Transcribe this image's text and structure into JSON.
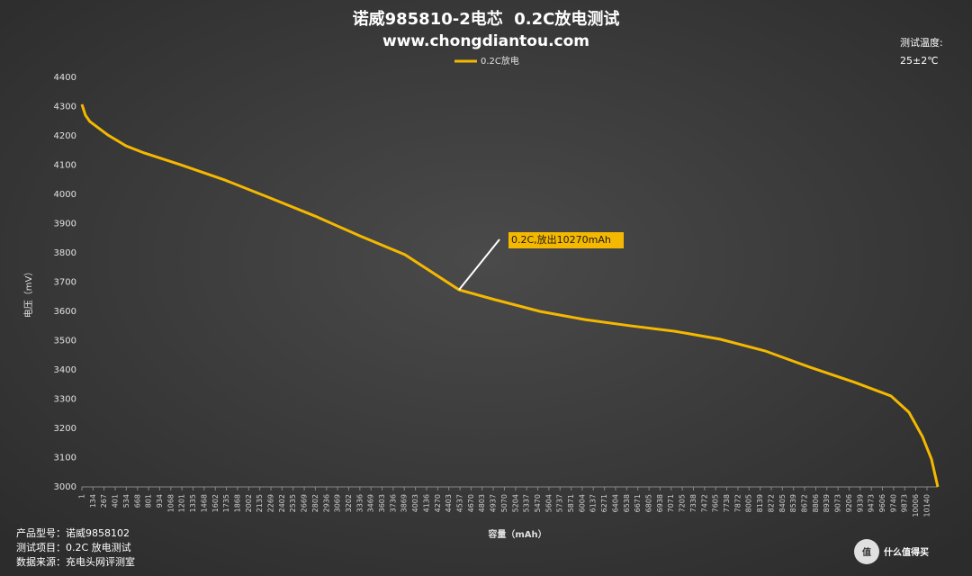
{
  "chart_data": {
    "type": "line",
    "title": "诺威985810-2电芯  0.2C放电测试",
    "subtitle": "www.chongdiantou.com",
    "temperature_label": "测试温度:",
    "temperature": "25±2℃",
    "y_label": "电压（mV）",
    "x_label": "容量（mAh）",
    "annotation": "0.2C,放出10270mAh",
    "notes": [
      "产品型号：诺威9858102",
      "测试项目：0.2C 放电测试",
      "数据来源：充电头网评测室"
    ],
    "watermark": "什么值得买",
    "watermark_icon": "值",
    "grid": false,
    "legend": "top",
    "x": [
      1,
      43,
      97,
      313,
      529,
      745,
      1177,
      1717,
      2257,
      2797,
      3337,
      3877,
      4525,
      4957,
      5497,
      6037,
      6577,
      7117,
      7657,
      8197,
      8737,
      9276,
      9708,
      9924,
      10086,
      10194,
      10270
    ],
    "series": [
      {
        "name": "0.2C放电",
        "color": "#f5b800",
        "values": [
          4308,
          4271,
          4249,
          4203,
          4166,
          4142,
          4102,
          4049,
          3988,
          3926,
          3858,
          3794,
          3674,
          3640,
          3600,
          3572,
          3551,
          3532,
          3505,
          3465,
          3409,
          3357,
          3311,
          3255,
          3172,
          3095,
          3000
        ]
      }
    ],
    "xlim": [
      1,
      10270
    ],
    "ylim": [
      3000,
      4400
    ],
    "xticks": [
      1,
      134,
      267,
      401,
      534,
      668,
      801,
      934,
      1068,
      1201,
      1335,
      1468,
      1602,
      1735,
      1868,
      2002,
      2135,
      2269,
      2402,
      2535,
      2669,
      2802,
      2936,
      3069,
      3202,
      3336,
      3469,
      3603,
      3736,
      3869,
      4003,
      4136,
      4270,
      4403,
      4537,
      4670,
      4803,
      4937,
      5070,
      5204,
      5337,
      5470,
      5604,
      5737,
      5871,
      6004,
      6137,
      6271,
      6404,
      6538,
      6671,
      6805,
      6938,
      7071,
      7205,
      7338,
      7472,
      7605,
      7738,
      7872,
      8005,
      8139,
      8272,
      8405,
      8539,
      8672,
      8806,
      8939,
      9073,
      9206,
      9339,
      9473,
      9606,
      9740,
      9873,
      10006,
      10140
    ],
    "yticks": [
      3000,
      3100,
      3200,
      3300,
      3400,
      3500,
      3600,
      3700,
      3800,
      3900,
      4000,
      4100,
      4200,
      4300,
      4400
    ]
  }
}
